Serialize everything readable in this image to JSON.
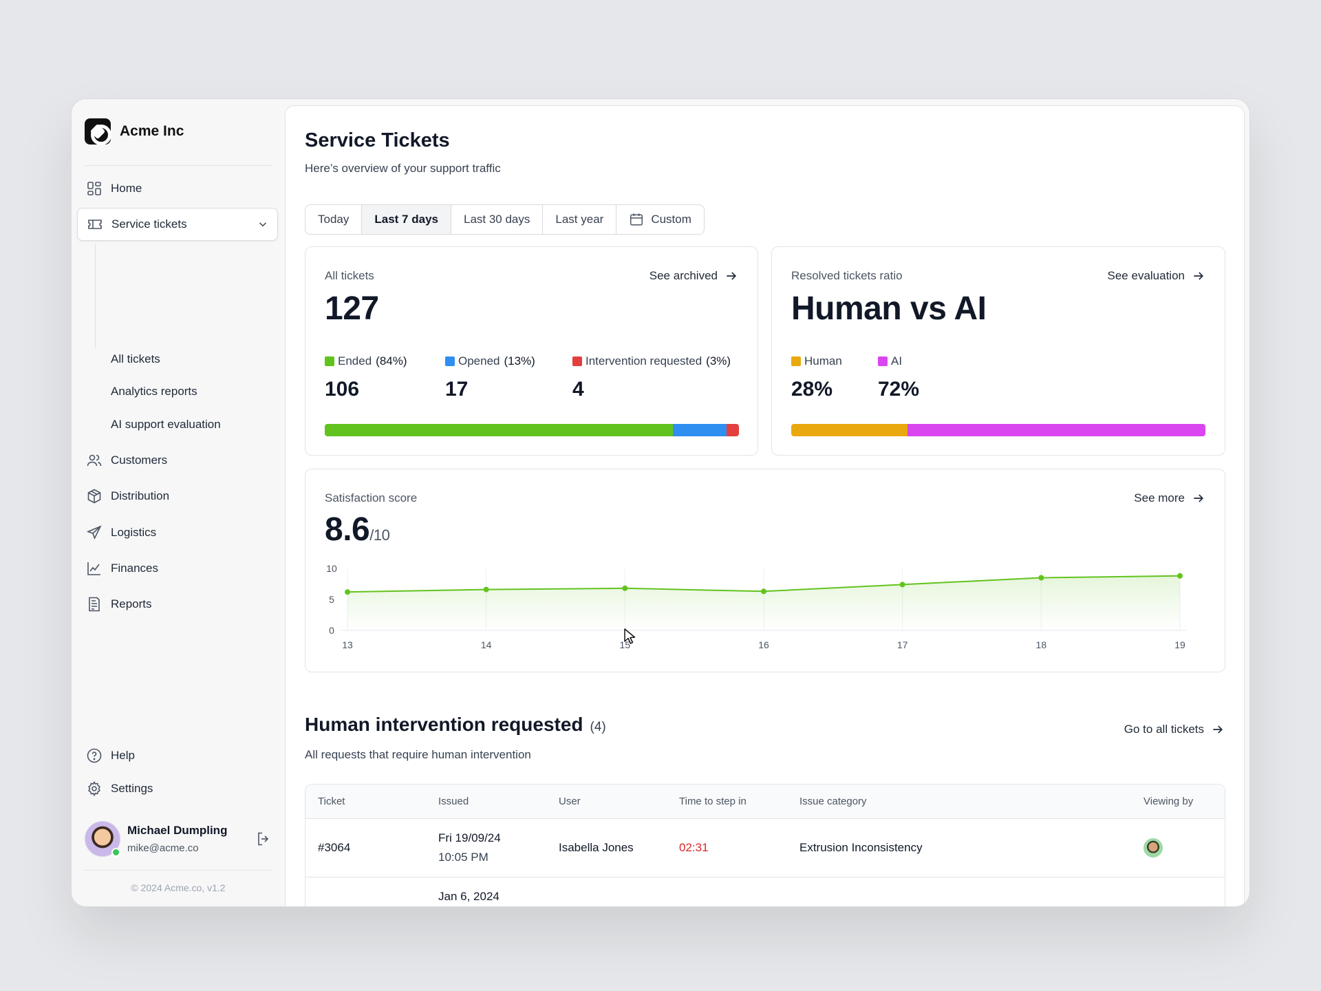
{
  "brand": {
    "name": "Acme Inc"
  },
  "nav": {
    "home": "Home",
    "service_tickets": "Service tickets",
    "sub": [
      "All tickets",
      "Analytics reports",
      "AI support evaluation"
    ],
    "customers": "Customers",
    "distribution": "Distribution",
    "logistics": "Logistics",
    "finances": "Finances",
    "reports": "Reports",
    "help": "Help",
    "settings": "Settings"
  },
  "user": {
    "name": "Michael Dumpling",
    "email": "mike@acme.co"
  },
  "copyright": "© 2024 Acme.co, v1.2",
  "page": {
    "title": "Service Tickets",
    "subtitle": "Here’s overview of your support traffic"
  },
  "ranges": [
    {
      "label": "Today",
      "selected": false
    },
    {
      "label": "Last 7 days",
      "selected": true
    },
    {
      "label": "Last 30 days",
      "selected": false
    },
    {
      "label": "Last year",
      "selected": false
    },
    {
      "label": "Custom",
      "selected": false
    }
  ],
  "all_tickets": {
    "label": "All tickets",
    "link": "See archived",
    "total": "127",
    "segments": [
      {
        "name": "Ended",
        "pct_label": "(84%)",
        "value": "106",
        "share": 0.84,
        "color": "#62c31e"
      },
      {
        "name": "Opened",
        "pct_label": "(13%)",
        "value": "17",
        "share": 0.13,
        "color": "#2f8ff0"
      },
      {
        "name": "Intervention requested",
        "pct_label": "(3%)",
        "value": "4",
        "share": 0.03,
        "color": "#e53e3e"
      }
    ]
  },
  "resolved": {
    "label": "Resolved tickets ratio",
    "link": "See evaluation",
    "headline": "Human vs AI",
    "segments": [
      {
        "name": "Human",
        "value": "28%",
        "share": 0.28,
        "color": "#e9a90e"
      },
      {
        "name": "AI",
        "value": "72%",
        "share": 0.72,
        "color": "#d946ef"
      }
    ]
  },
  "satisfaction": {
    "label": "Satisfaction score",
    "link": "See more",
    "score": "8.6",
    "scale": "/10"
  },
  "chart_data": {
    "type": "area",
    "title": "Satisfaction score",
    "x": [
      "13",
      "14",
      "15",
      "16",
      "17",
      "18",
      "19"
    ],
    "series": [
      {
        "values": [
          6.2,
          6.6,
          6.8,
          6.3,
          7.4,
          8.5,
          8.8
        ]
      }
    ],
    "ylim": [
      0,
      10
    ],
    "yticks": [
      "0",
      "5",
      "10"
    ],
    "grid": "vertical",
    "color": "#62c31e"
  },
  "intervention": {
    "title": "Human intervention requested",
    "count": "(4)",
    "subtitle": "All requests that require human intervention",
    "link": "Go to all tickets",
    "columns": [
      "Ticket",
      "Issued",
      "User",
      "Time to step in",
      "Issue category",
      "Viewing by"
    ],
    "rows": [
      {
        "ticket": "#3064",
        "date": "Fri 19/09/24",
        "time": "10:05 PM",
        "user": "Isabella Jones",
        "step_in": "02:31",
        "category": "Extrusion Inconsistency"
      },
      {
        "ticket": "",
        "date": "Jan 6, 2024",
        "time": "",
        "user": "",
        "step_in": "",
        "category": ""
      }
    ]
  }
}
